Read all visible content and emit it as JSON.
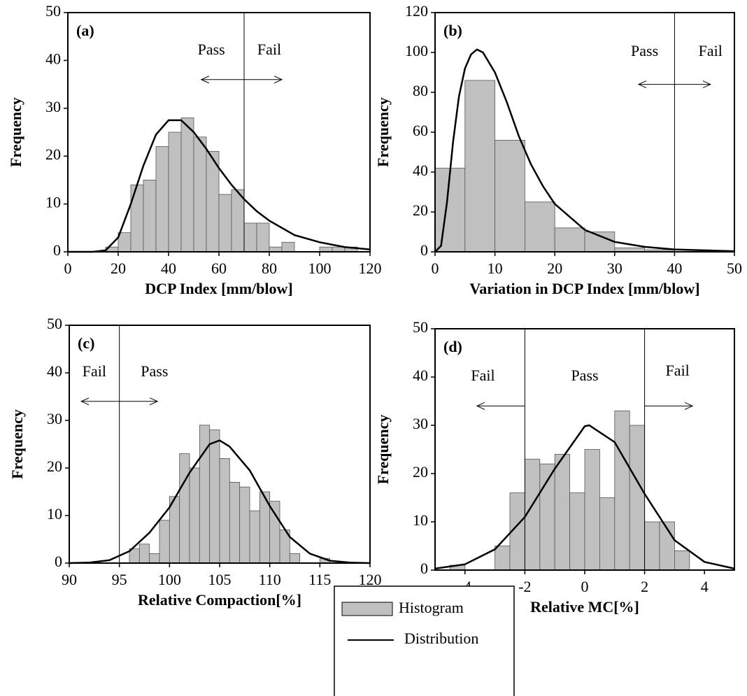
{
  "legend": [
    {
      "name": "Histogram",
      "color": "#c0c0c0"
    },
    {
      "name": "Distribution",
      "color": "#000000"
    }
  ],
  "chart_data": [
    {
      "type": "histogram",
      "panel_label": "(a)",
      "x_label": "DCP Index [mm/blow]",
      "y_label": "Frequency",
      "xlim": [
        0,
        120
      ],
      "xticks": [
        0,
        20,
        40,
        60,
        80,
        100,
        120
      ],
      "ylim": [
        0,
        50
      ],
      "yticks": [
        0,
        10,
        20,
        30,
        40,
        50
      ],
      "bins": [
        15,
        20,
        25,
        30,
        35,
        40,
        45,
        50,
        55,
        60,
        65,
        70,
        75,
        80,
        85,
        90,
        95,
        100,
        105,
        110,
        115
      ],
      "values": [
        1,
        4,
        14,
        15,
        22,
        25,
        28,
        24,
        21,
        12,
        13,
        6,
        6,
        1,
        2,
        0,
        0,
        1,
        1,
        1
      ],
      "distribution": {
        "x": [
          0,
          10,
          15,
          20,
          25,
          30,
          35,
          40,
          45,
          50,
          55,
          60,
          65,
          70,
          75,
          80,
          90,
          100,
          110,
          120
        ],
        "y": [
          0,
          0,
          0.3,
          3,
          10,
          18,
          24.5,
          27.5,
          27.5,
          25,
          21.5,
          17.5,
          14,
          11,
          8.5,
          6.5,
          3.5,
          2,
          1,
          0.5
        ]
      },
      "thresholds": [
        70
      ],
      "annotations": [
        {
          "text": "Pass",
          "x": 57,
          "y": 42
        },
        {
          "text": "Fail",
          "x": 80,
          "y": 42
        }
      ],
      "arrows": [
        {
          "from": 70,
          "to": 53,
          "y": 36
        },
        {
          "from": 70,
          "to": 85,
          "y": 36
        }
      ]
    },
    {
      "type": "histogram",
      "panel_label": "(b)",
      "x_label": "Variation in DCP Index [mm/blow]",
      "y_label": "Frequency",
      "xlim": [
        0,
        50
      ],
      "xticks": [
        0,
        10,
        20,
        30,
        40,
        50
      ],
      "ylim": [
        0,
        120
      ],
      "yticks": [
        0,
        20,
        40,
        60,
        80,
        100,
        120
      ],
      "bins": [
        0,
        5,
        10,
        15,
        20,
        25,
        30,
        35,
        40
      ],
      "values": [
        42,
        86,
        56,
        25,
        12,
        10,
        2,
        1
      ],
      "distribution": {
        "x": [
          0,
          1,
          2,
          3,
          4,
          5,
          6,
          7,
          8,
          10,
          12,
          14,
          16,
          18,
          20,
          25,
          30,
          35,
          40,
          50
        ],
        "y": [
          0,
          3,
          25,
          55,
          78,
          92,
          99,
          101.5,
          100,
          90,
          75,
          58,
          44,
          33,
          24,
          11,
          5,
          2.5,
          1.2,
          0.3
        ]
      },
      "thresholds": [
        40
      ],
      "annotations": [
        {
          "text": "Pass",
          "x": 35,
          "y": 100
        },
        {
          "text": "Fail",
          "x": 46,
          "y": 100
        }
      ],
      "arrows": [
        {
          "from": 40,
          "to": 34,
          "y": 84
        },
        {
          "from": 40,
          "to": 46,
          "y": 84
        }
      ]
    },
    {
      "type": "histogram",
      "panel_label": "(c)",
      "x_label": "Relative Compaction[%]",
      "y_label": "Frequency",
      "xlim": [
        90,
        120
      ],
      "xticks": [
        90,
        95,
        100,
        105,
        110,
        115,
        120
      ],
      "ylim": [
        0,
        50
      ],
      "yticks": [
        0,
        10,
        20,
        30,
        40,
        50
      ],
      "bins": [
        96,
        97,
        98,
        99,
        100,
        101,
        102,
        103,
        104,
        105,
        106,
        107,
        108,
        109,
        110,
        111,
        112,
        113,
        114,
        115,
        116
      ],
      "values": [
        3,
        4,
        2,
        9,
        14,
        23,
        20,
        29,
        28,
        22,
        17,
        16,
        11,
        15,
        13,
        7,
        2,
        0,
        0,
        1
      ],
      "distribution": {
        "x": [
          90,
          92,
          94,
          96,
          98,
          100,
          102,
          104,
          105,
          106,
          108,
          110,
          112,
          114,
          116,
          118,
          120
        ],
        "y": [
          0,
          0.1,
          0.6,
          2.5,
          6.4,
          11.7,
          19,
          25,
          25.8,
          24.5,
          19.5,
          12,
          5.5,
          2,
          0.5,
          0.1,
          0
        ]
      },
      "thresholds": [
        95
      ],
      "annotations": [
        {
          "text": "Fail",
          "x": 92.5,
          "y": 40
        },
        {
          "text": "Pass",
          "x": 98.5,
          "y": 40
        }
      ],
      "arrows": [
        {
          "from": 95,
          "to": 91.2,
          "y": 34
        },
        {
          "from": 95,
          "to": 98.8,
          "y": 34
        }
      ]
    },
    {
      "type": "histogram",
      "panel_label": "(d)",
      "x_label": "Relative MC[%]",
      "y_label": "Frequency",
      "xlim": [
        -5,
        5
      ],
      "xticks": [
        -4,
        -2,
        0,
        2,
        4
      ],
      "ylim": [
        0,
        50
      ],
      "yticks": [
        0,
        10,
        20,
        30,
        40,
        50
      ],
      "bins": [
        -4.5,
        -4,
        -3.5,
        -3,
        -2.5,
        -2,
        -1.5,
        -1,
        -0.5,
        0,
        0.5,
        1,
        1.5,
        2,
        2.5,
        3,
        3.5
      ],
      "values": [
        1,
        0,
        0,
        5,
        16,
        23,
        22,
        24,
        16,
        25,
        15,
        33,
        30,
        10,
        10,
        4
      ],
      "distribution": {
        "x": [
          -5,
          -4,
          -3,
          -2,
          -1,
          0,
          0.15,
          1,
          2,
          3,
          4,
          5
        ],
        "y": [
          0.3,
          1.2,
          4.3,
          11,
          21,
          29.8,
          30,
          26.5,
          15.8,
          6.2,
          1.7,
          0.3
        ]
      },
      "thresholds": [
        -2,
        2
      ],
      "annotations": [
        {
          "text": "Fail",
          "x": -3.4,
          "y": 40
        },
        {
          "text": "Pass",
          "x": 0,
          "y": 40
        },
        {
          "text": "Fail",
          "x": 3.1,
          "y": 41
        }
      ],
      "arrows": [
        {
          "from": -2,
          "to": -3.6,
          "y": 34
        },
        {
          "from": 2,
          "to": 3.6,
          "y": 34
        }
      ]
    }
  ]
}
